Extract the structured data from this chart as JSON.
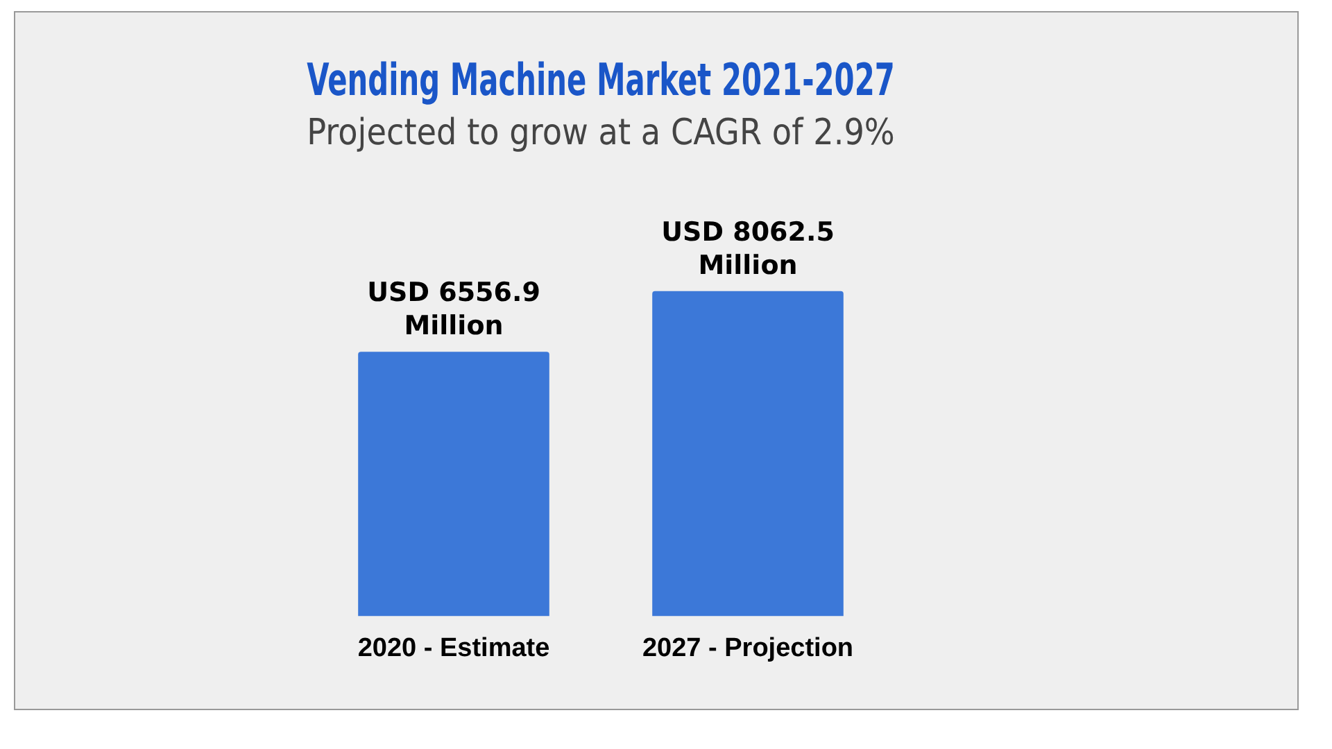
{
  "chart_data": {
    "type": "bar",
    "title": "Vending Machine Market 2021-2027",
    "subtitle": "Projected to grow at a CAGR of 2.9%",
    "categories": [
      "2020 - Estimate",
      "2027 - Projection"
    ],
    "values": [
      6556.9,
      8062.5
    ],
    "value_labels": [
      "USD 6556.9 Million",
      "USD 8062.5 Million"
    ],
    "color": "#3c78d8",
    "grid": false,
    "legend": false
  }
}
